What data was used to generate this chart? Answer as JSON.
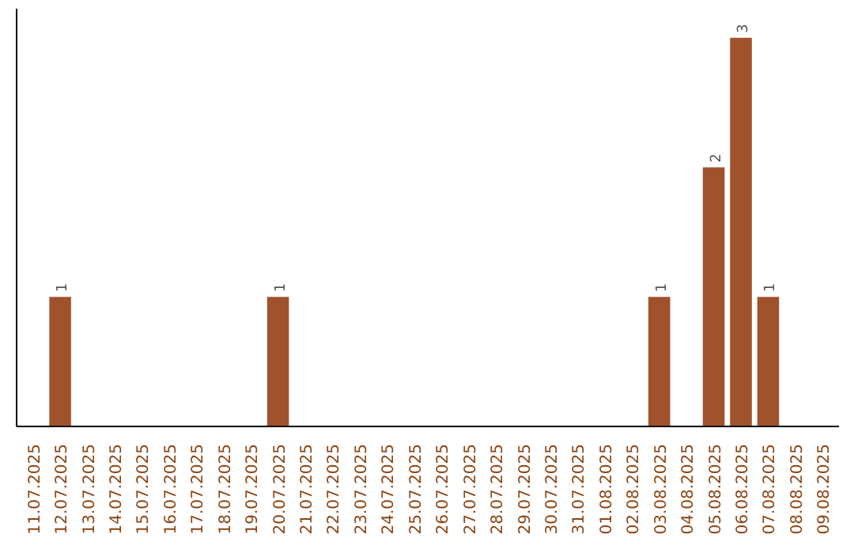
{
  "chart_data": {
    "type": "bar",
    "categories": [
      "11.07.2025",
      "12.07.2025",
      "13.07.2025",
      "14.07.2025",
      "15.07.2025",
      "16.07.2025",
      "17.07.2025",
      "18.07.2025",
      "19.07.2025",
      "20.07.2025",
      "21.07.2025",
      "22.07.2025",
      "23.07.2025",
      "24.07.2025",
      "25.07.2025",
      "26.07.2025",
      "27.07.2025",
      "28.07.2025",
      "29.07.2025",
      "30.07.2025",
      "31.07.2025",
      "01.08.2025",
      "02.08.2025",
      "03.08.2025",
      "04.08.2025",
      "05.08.2025",
      "06.08.2025",
      "07.08.2025",
      "08.08.2025",
      "09.08.2025"
    ],
    "values": [
      0,
      1,
      0,
      0,
      0,
      0,
      0,
      0,
      0,
      1,
      0,
      0,
      0,
      0,
      0,
      0,
      0,
      0,
      0,
      0,
      0,
      0,
      0,
      1,
      0,
      2,
      3,
      1,
      0,
      0
    ],
    "value_labels": [
      null,
      "1",
      null,
      null,
      null,
      null,
      null,
      null,
      null,
      "1",
      null,
      null,
      null,
      null,
      null,
      null,
      null,
      null,
      null,
      null,
      null,
      null,
      null,
      "1",
      null,
      "2",
      "3",
      "1",
      null,
      null
    ],
    "color": "#a0522d",
    "grid": false,
    "tick_labels": "x"
  }
}
